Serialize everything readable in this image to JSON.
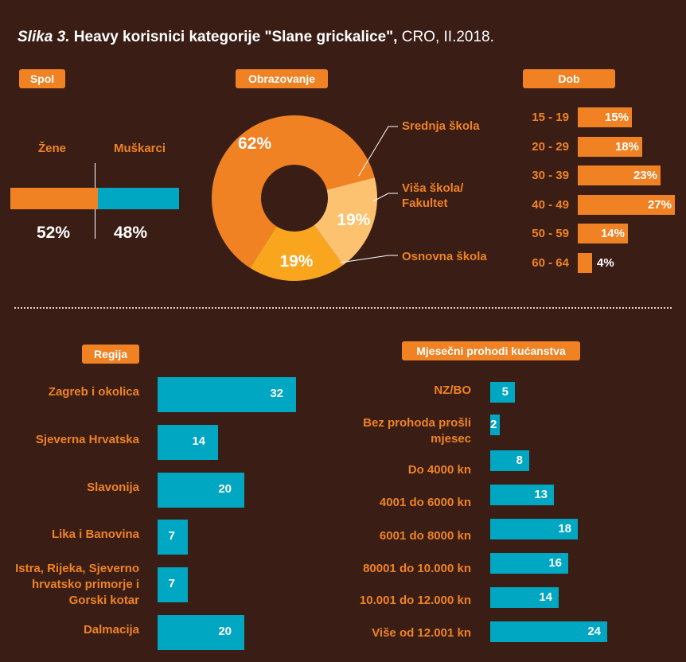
{
  "title": {
    "italic": "Slika 3.",
    "bold": " Heavy korisnici kategorije \"Slane grickalice\",",
    "normal": " CRO, II.2018."
  },
  "colors": {
    "orange": "#f08224",
    "teal": "#00a7c2",
    "light_orange": "#fcc26f",
    "mid_orange": "#f9a51d",
    "background": "#3a1e16"
  },
  "spol": {
    "badge": "Spol",
    "female_label": "Žene",
    "male_label": "Muškarci",
    "female_pct": "52%",
    "male_pct": "48%"
  },
  "obrazovanje": {
    "badge": "Obrazovanje",
    "labels": [
      "Srednja škola",
      "Viša škola/\nFakultet",
      "Osnovna škola"
    ],
    "pct_labels": [
      "62%",
      "19%",
      "19%"
    ]
  },
  "dob": {
    "badge": "Dob",
    "pct_labels": [
      "15%",
      "18%",
      "23%",
      "27%",
      "14%",
      "4%"
    ]
  },
  "regija": {
    "badge": "Regija"
  },
  "prihodi": {
    "badge": "Mjesečni prohodi kućanstva"
  },
  "chart_data": [
    {
      "type": "bar",
      "title": "Spol",
      "categories": [
        "Žene",
        "Muškarci"
      ],
      "values": [
        52,
        48
      ],
      "unit": "%"
    },
    {
      "type": "pie",
      "title": "Obrazovanje",
      "categories": [
        "Srednja škola",
        "Viša škola/ Fakultet",
        "Osnovna škola"
      ],
      "values": [
        62,
        19,
        19
      ],
      "unit": "%"
    },
    {
      "type": "bar",
      "title": "Dob",
      "categories": [
        "15 - 19",
        "20 - 29",
        "30 - 39",
        "40 - 49",
        "50 - 59",
        "60 - 64"
      ],
      "values": [
        15,
        18,
        23,
        27,
        14,
        4
      ],
      "unit": "%"
    },
    {
      "type": "bar",
      "title": "Regija",
      "categories": [
        "Zagreb i okolica",
        "Sjeverna Hrvatska",
        "Slavonija",
        "Lika i Banovina",
        "Istra, Rijeka, Sjeverno hrvatsko primorje i Gorski kotar",
        "Dalmacija"
      ],
      "values": [
        32,
        14,
        20,
        7,
        7,
        20
      ]
    },
    {
      "type": "bar",
      "title": "Mjesečni prohodi kućanstva",
      "categories": [
        "NZ/BO",
        "Bez prohoda prošli mjesec",
        "Do 4000 kn",
        "4001 do 6000 kn",
        "6001 do 8000 kn",
        "80001 do 10.000 kn",
        "10.001 do 12.000 kn",
        "Više od 12.001 kn"
      ],
      "values": [
        5,
        2,
        8,
        13,
        18,
        16,
        14,
        24
      ]
    }
  ]
}
